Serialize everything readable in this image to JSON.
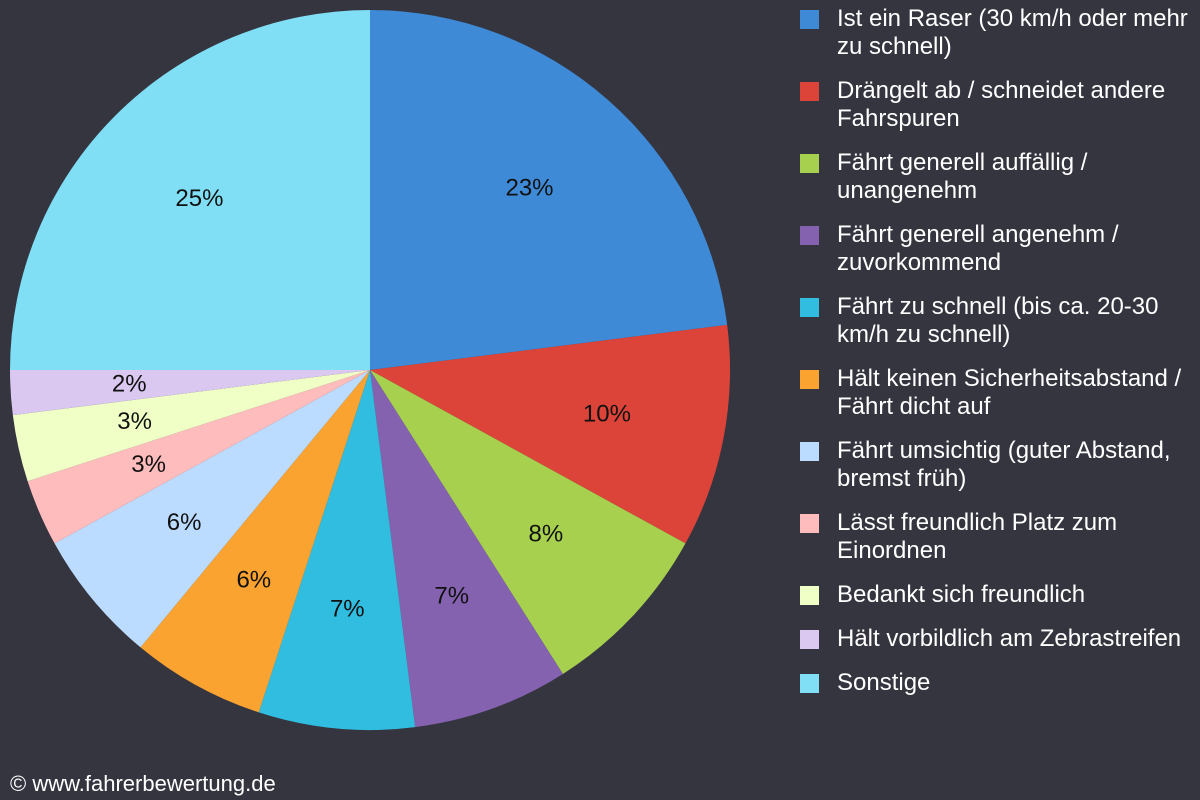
{
  "chart_data": {
    "type": "pie",
    "categories": [
      "Ist ein Raser (30 km/h oder mehr zu schnell)",
      "Drängelt ab / schneidet andere Fahrspuren",
      "Fährt generell auffällig / unangenehm",
      "Fährt generell angenehm / zuvorkommend",
      "Fährt zu schnell (bis ca. 20-30 km/h zu schnell)",
      "Hält keinen Sicherheitsabstand / Fährt dicht auf",
      "Fährt umsichtig (guter Abstand, bremst früh)",
      "Lässt freundlich Platz zum Einordnen",
      "Bedankt sich freundlich",
      "Hält vorbildlich am Zebrastreifen",
      "Sonstige"
    ],
    "values": [
      23,
      10,
      8,
      7,
      7,
      6,
      6,
      3,
      3,
      2,
      25
    ],
    "value_labels": [
      "23%",
      "10%",
      "8%",
      "7%",
      "7%",
      "6%",
      "6%",
      "3%",
      "3%",
      "2%",
      "25%"
    ],
    "colors": [
      "#3e8ad6",
      "#dc4439",
      "#a7d04f",
      "#8462b0",
      "#30bde0",
      "#fba330",
      "#bcdcff",
      "#ffbcbc",
      "#f0ffc6",
      "#dac8f0",
      "#80dff5"
    ],
    "legend": "right"
  },
  "footer": "© www.fahrerbewertung.de"
}
